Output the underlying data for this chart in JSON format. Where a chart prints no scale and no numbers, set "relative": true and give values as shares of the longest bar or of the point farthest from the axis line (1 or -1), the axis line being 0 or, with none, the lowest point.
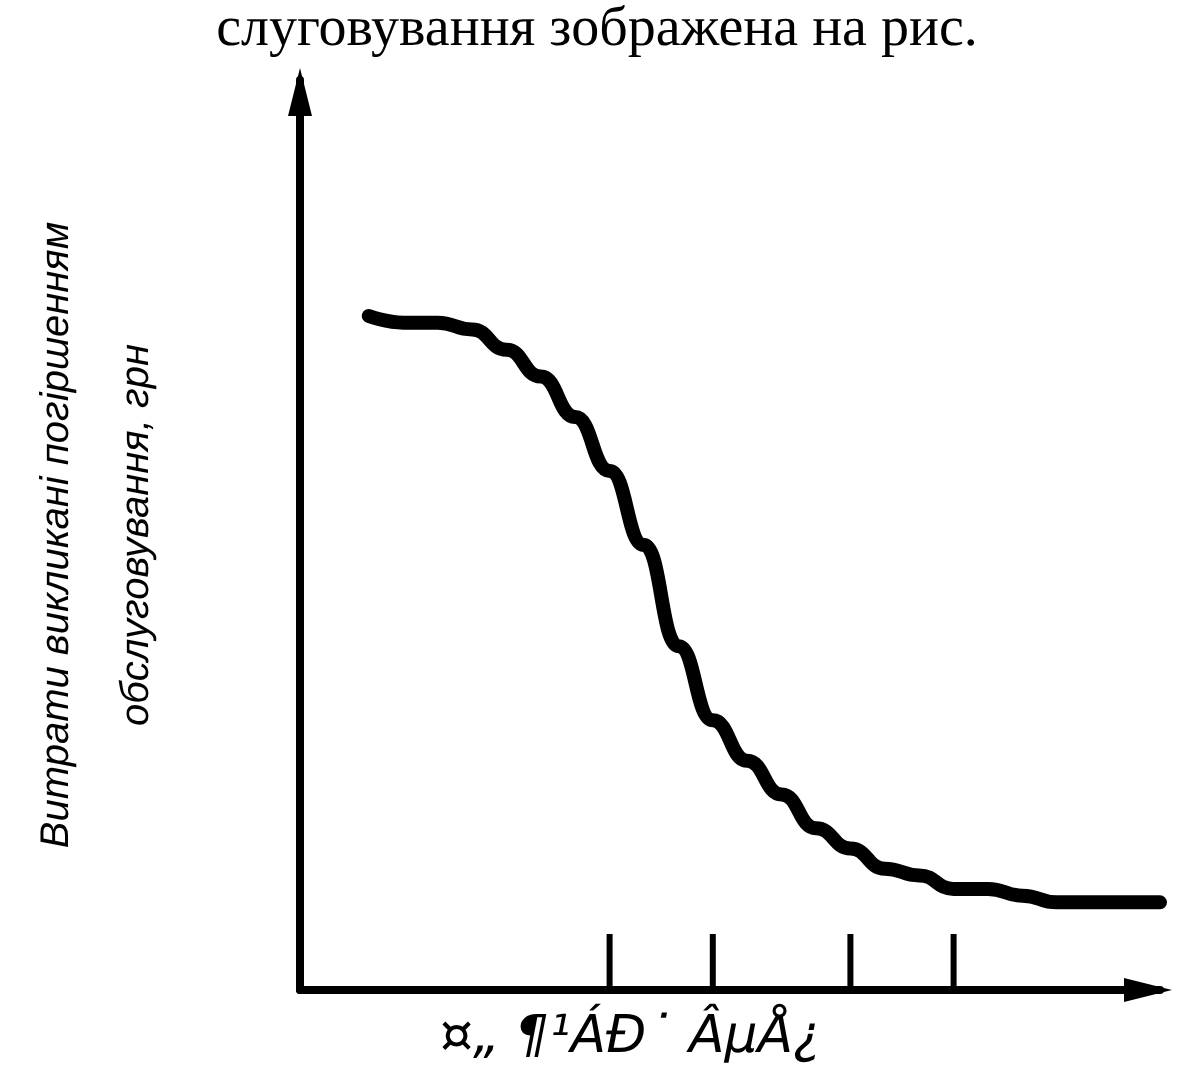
{
  "chart_data": {
    "type": "line",
    "relative": true,
    "categories": [
      null,
      null,
      null,
      null,
      null,
      null,
      null,
      null,
      null,
      null,
      null,
      null,
      null,
      null,
      null,
      null,
      null,
      null,
      null,
      null,
      null,
      null,
      null,
      null,
      null,
      null
    ],
    "series": [
      {
        "color": "#000000",
        "values": [
          null,
          null,
          1,
          0.99,
          0.99,
          0.98,
          0.95,
          0.91,
          0.85,
          0.77,
          0.66,
          0.51,
          0.4,
          0.34,
          0.29,
          0.24,
          0.21,
          0.18,
          0.17,
          0.15,
          0.15,
          0.14,
          0.13,
          0.13,
          0.13,
          0.13
        ]
      }
    ],
    "xlabel": "¤„ ¶¹ÁÐ˙ ÂµÅ¿",
    "ylabel": "Витрати викликані погіршенням\nобслуговування, грн",
    "annotations": [
      "слуговування зображена на рис."
    ],
    "grid": false,
    "line_style": "solid"
  }
}
